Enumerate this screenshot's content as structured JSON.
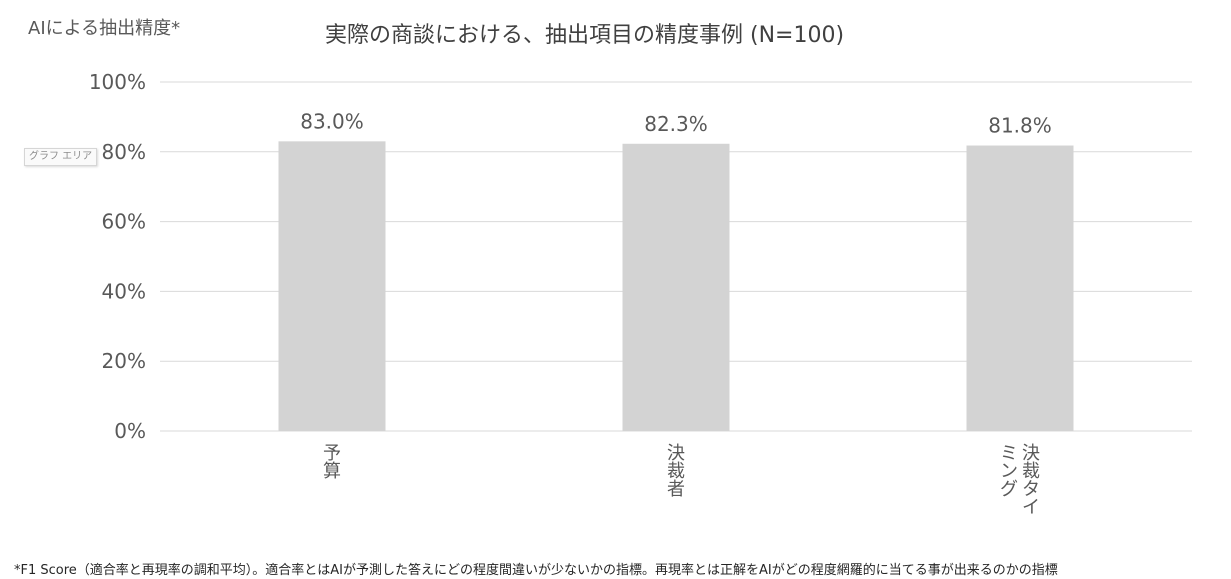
{
  "chart_data": {
    "type": "bar",
    "title": "実際の商談における、抽出項目の精度事例 (N=100)",
    "ylabel": "AIによる抽出精度*",
    "categories": [
      "予算",
      "決裁者",
      "決裁タイミング"
    ],
    "values": [
      83.0,
      82.3,
      81.8
    ],
    "data_labels": [
      "83.0%",
      "82.3%",
      "81.8%"
    ],
    "ylim": [
      0,
      100
    ],
    "yticks": [
      0,
      20,
      40,
      60,
      80,
      100
    ],
    "ytick_labels": [
      "0%",
      "20%",
      "40%",
      "60%",
      "80%",
      "100%"
    ],
    "grid": true,
    "legend": "none",
    "bar_color": "#d3d3d3",
    "grid_color": "#d9d9d9"
  },
  "chart_area_tag": "グラフ エリア",
  "footnote": "*F1 Score（適合率と再現率の調和平均）。適合率とはAIが予測した答えにどの程度間違いが少ないかの指標。再現率とは正解をAIがどの程度網羅的に当てる事が出来るのかの指標"
}
